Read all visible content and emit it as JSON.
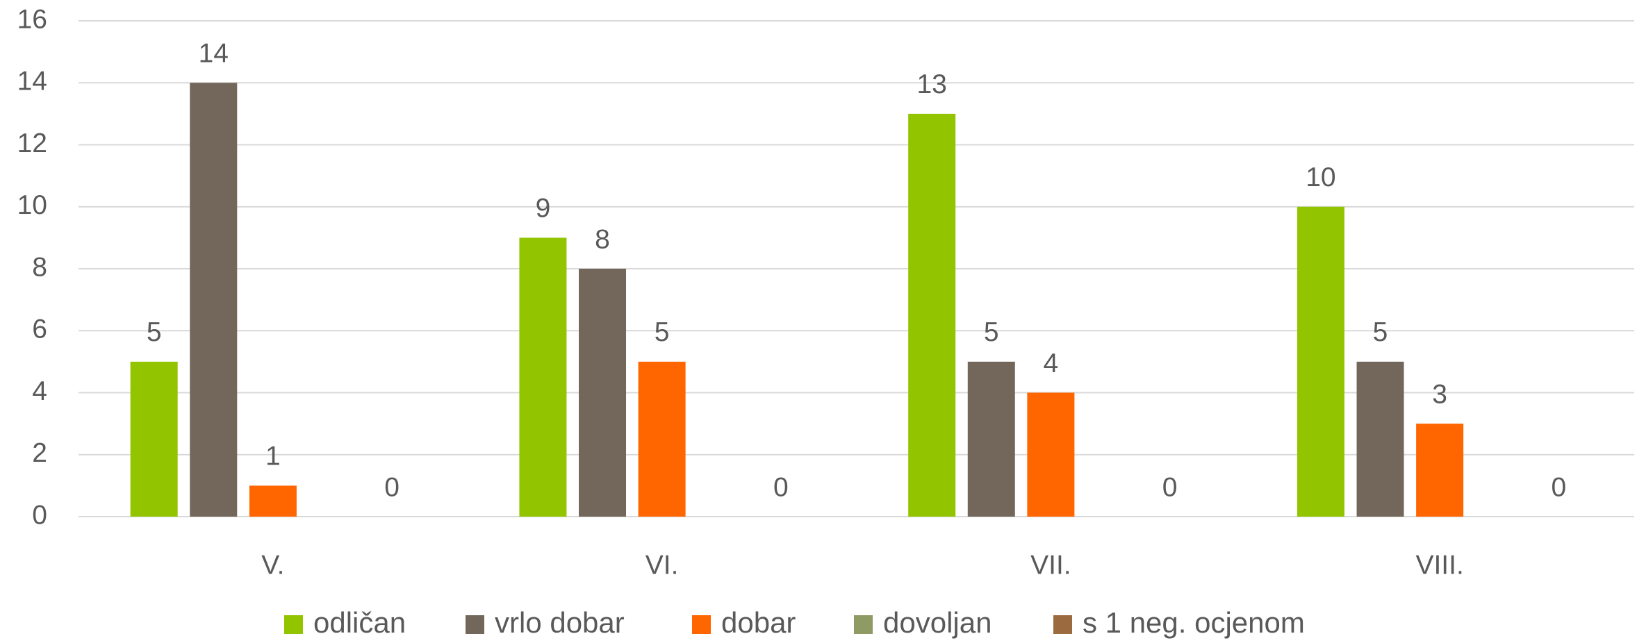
{
  "chart_data": {
    "type": "bar",
    "categories": [
      "V.",
      "VI.",
      "VII.",
      "VIII."
    ],
    "series": [
      {
        "name": "odličan",
        "color": "#92c400",
        "values": [
          5,
          9,
          13,
          10
        ],
        "show_labels": true
      },
      {
        "name": "vrlo dobar",
        "color": "#72675a",
        "values": [
          14,
          8,
          5,
          5
        ],
        "show_labels": true
      },
      {
        "name": "dobar",
        "color": "#ff6600",
        "values": [
          1,
          5,
          4,
          3
        ],
        "show_labels": true
      },
      {
        "name": "dovoljan",
        "color": "#8f9a64",
        "values": [
          0,
          0,
          0,
          0
        ],
        "show_labels": false
      },
      {
        "name": "s 1 neg. ocjenom",
        "color": "#9b6a3f",
        "values": [
          0,
          0,
          0,
          0
        ],
        "show_labels": true
      }
    ],
    "ylim": [
      0,
      16
    ],
    "yticks": [
      0,
      2,
      4,
      6,
      8,
      10,
      12,
      14,
      16
    ],
    "grid": true,
    "legend": "bottom"
  }
}
